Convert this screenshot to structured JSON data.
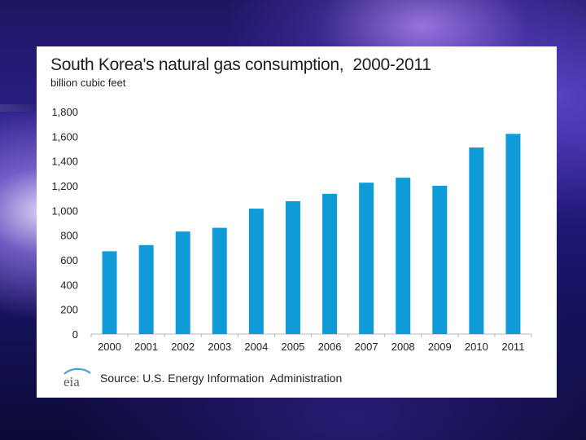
{
  "slide": {
    "title": "South Korea's natural gas consumption,  2000-2011",
    "subtitle": "billion cubic feet",
    "source": "Source: U.S. Energy Information  Administration",
    "logo_text": "eia"
  },
  "colors": {
    "bar": "#0f9ad8",
    "axis": "#b8b8b8",
    "text": "#222222"
  },
  "chart_data": {
    "type": "bar",
    "title": "South Korea's natural gas consumption,  2000-2011",
    "ylabel": "billion cubic feet",
    "xlabel": "",
    "categories": [
      "2000",
      "2001",
      "2002",
      "2003",
      "2004",
      "2005",
      "2006",
      "2007",
      "2008",
      "2009",
      "2010",
      "2011"
    ],
    "values": [
      670,
      720,
      830,
      860,
      1015,
      1075,
      1135,
      1225,
      1265,
      1200,
      1510,
      1620
    ],
    "ylim": [
      0,
      1800
    ],
    "yticks": [
      0,
      200,
      400,
      600,
      800,
      1000,
      1200,
      1400,
      1600,
      1800
    ],
    "ytick_labels": [
      "0",
      "200",
      "400",
      "600",
      "800",
      "1,000",
      "1,200",
      "1,400",
      "1,600",
      "1,800"
    ],
    "grid": false,
    "legend": "none"
  }
}
